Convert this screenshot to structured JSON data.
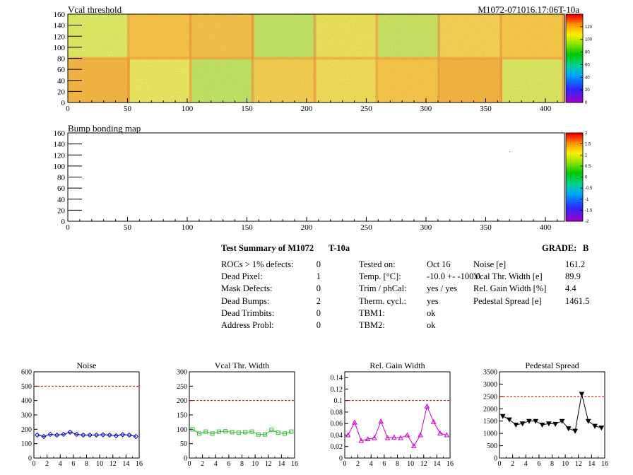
{
  "header": {
    "module_id": "M1072-071016.17:06T-10a"
  },
  "maps": [
    {
      "title": "Vcal threshold",
      "x_ticks": [
        "0",
        "50",
        "100",
        "150",
        "200",
        "250",
        "300",
        "350",
        "400"
      ],
      "y_ticks": [
        "0",
        "20",
        "40",
        "60",
        "80",
        "100",
        "120",
        "140",
        "160"
      ],
      "z_ticks": [
        "0",
        "20",
        "40",
        "60",
        "80",
        "100",
        "120"
      ]
    },
    {
      "title": "Bump bonding map",
      "x_ticks": [
        "0",
        "50",
        "100",
        "150",
        "200",
        "250",
        "300",
        "350",
        "400"
      ],
      "y_ticks": [
        "0",
        "20",
        "40",
        "60",
        "80",
        "100",
        "120",
        "140",
        "160"
      ],
      "z_ticks": [
        "-2",
        "-1.5",
        "-1",
        "-0.5",
        "0",
        "0.5",
        "1",
        "1.5",
        "2"
      ]
    }
  ],
  "summary": {
    "title": "Test Summary of M1072",
    "suffix": "T-10a",
    "grade_label": "GRADE:",
    "grade_value": "B",
    "left": [
      {
        "label": "ROCs > 1% defects:",
        "value": "0"
      },
      {
        "label": "Dead Pixel:",
        "value": "1"
      },
      {
        "label": "Mask Defects:",
        "value": "0"
      },
      {
        "label": "Dead Bumps:",
        "value": "2"
      },
      {
        "label": "Dead Trimbits:",
        "value": "0"
      },
      {
        "label": "Address Probl:",
        "value": "0"
      }
    ],
    "middle": [
      {
        "label": "Tested on:",
        "value": "Oct 16"
      },
      {
        "label": "Temp. [°C]:",
        "value": "-10.0 +- -100.0"
      },
      {
        "label": "Trim / phCal:",
        "value": "yes / yes"
      },
      {
        "label": "Therm. cycl.:",
        "value": "yes"
      },
      {
        "label": "TBM1:",
        "value": "ok"
      },
      {
        "label": "TBM2:",
        "value": "ok"
      }
    ],
    "right": [
      {
        "label": "Noise [e]",
        "value": "161.2"
      },
      {
        "label": "Vcal Thr. Width [e]",
        "value": "89.9"
      },
      {
        "label": "Rel. Gain Width [%]",
        "value": "4.4"
      },
      {
        "label": "Pedestal Spread [e]",
        "value": "1461.5"
      }
    ]
  },
  "chart_data": [
    {
      "type": "line",
      "title": "Noise",
      "x": [
        0,
        1,
        2,
        3,
        4,
        5,
        6,
        7,
        8,
        9,
        10,
        11,
        12,
        13,
        14,
        15
      ],
      "x_ticks": [
        "0",
        "2",
        "4",
        "6",
        "8",
        "10",
        "12",
        "14",
        "16"
      ],
      "y_ticks": [
        "0",
        "100",
        "200",
        "300",
        "400",
        "500",
        "600"
      ],
      "xlim": [
        0,
        16
      ],
      "ylim": [
        0,
        600
      ],
      "threshold": 500,
      "color": "#0000cc",
      "marker": "diamond",
      "values": [
        160,
        150,
        165,
        160,
        165,
        180,
        165,
        160,
        160,
        160,
        162,
        160,
        155,
        163,
        160,
        150
      ]
    },
    {
      "type": "line",
      "title": "Vcal Thr. Width",
      "x": [
        0,
        1,
        2,
        3,
        4,
        5,
        6,
        7,
        8,
        9,
        10,
        11,
        12,
        13,
        14,
        15
      ],
      "x_ticks": [
        "0",
        "2",
        "4",
        "6",
        "8",
        "10",
        "12",
        "14",
        "16"
      ],
      "y_ticks": [
        "0",
        "50",
        "100",
        "150",
        "200",
        "250",
        "300"
      ],
      "xlim": [
        0,
        16
      ],
      "ylim": [
        0,
        300
      ],
      "threshold": 200,
      "color": "#33bb33",
      "marker": "square",
      "values": [
        100,
        85,
        92,
        85,
        92,
        93,
        90,
        88,
        90,
        92,
        82,
        82,
        98,
        88,
        85,
        92
      ]
    },
    {
      "type": "line",
      "title": "Rel. Gain Width",
      "x": [
        0,
        1,
        2,
        3,
        4,
        5,
        6,
        7,
        8,
        9,
        10,
        11,
        12,
        13,
        14,
        15
      ],
      "x_ticks": [
        "0",
        "2",
        "4",
        "6",
        "8",
        "10",
        "12",
        "14",
        "16"
      ],
      "y_ticks": [
        "0",
        "0.02",
        "0.04",
        "0.06",
        "0.08",
        "0.1",
        "0.12",
        "0.14"
      ],
      "xlim": [
        0,
        16
      ],
      "ylim": [
        0,
        0.15
      ],
      "threshold": 0.1,
      "color": "#cc00cc",
      "marker": "triangle",
      "values": [
        0.04,
        0.062,
        0.03,
        0.033,
        0.035,
        0.064,
        0.035,
        0.036,
        0.035,
        0.04,
        0.021,
        0.04,
        0.09,
        0.063,
        0.043,
        0.04
      ]
    },
    {
      "type": "line",
      "title": "Pedestal Spread",
      "x": [
        0,
        1,
        2,
        3,
        4,
        5,
        6,
        7,
        8,
        9,
        10,
        11,
        12,
        13,
        14,
        15
      ],
      "x_ticks": [
        "0",
        "2",
        "4",
        "6",
        "8",
        "10",
        "12",
        "14",
        "16"
      ],
      "y_ticks": [
        "0",
        "500",
        "1000",
        "1500",
        "2000",
        "2500",
        "3000",
        "3500"
      ],
      "xlim": [
        0,
        16
      ],
      "ylim": [
        0,
        3500
      ],
      "threshold": 2500,
      "color": "#000000",
      "marker": "triangle-down",
      "values": [
        1700,
        1560,
        1350,
        1400,
        1500,
        1500,
        1350,
        1400,
        1380,
        1500,
        1200,
        1100,
        2600,
        1500,
        1300,
        1230
      ]
    }
  ]
}
